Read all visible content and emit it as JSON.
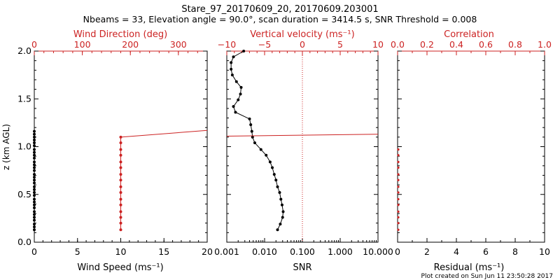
{
  "header": {
    "title": "Stare_97_20170609_20, 20170609.203001",
    "subtitle": "Nbeams = 33, Elevation angle = 90.0°, scan duration = 3414.5 s, SNR Threshold = 0.008"
  },
  "footer": {
    "created": "Plot created on Sun Jun 11 23:50:28 2017"
  },
  "colors": {
    "primary": "#000000",
    "accent": "#cc2222"
  },
  "chart_data": [
    {
      "type": "scatter",
      "panel": "wind",
      "ylabel": "z (km AGL)",
      "ylim": [
        0,
        2
      ],
      "yticks": [
        "0.0",
        "0.5",
        "1.0",
        "1.5",
        "2.0"
      ],
      "xlabel": "Wind Speed (ms⁻¹)",
      "xlim": [
        0,
        20
      ],
      "xticks": [
        "0",
        "5",
        "10",
        "15",
        "20"
      ],
      "xlabel_top": "Wind Direction (deg)",
      "xlim_top": [
        0,
        360
      ],
      "xticks_top": [
        "0",
        "100",
        "200",
        "300"
      ],
      "xticks_top_values": [
        0,
        100,
        200,
        300
      ],
      "series": [
        {
          "color": "#000000",
          "axis": "bottom",
          "z": [
            0.13,
            0.16,
            0.19,
            0.23,
            0.26,
            0.29,
            0.32,
            0.36,
            0.39,
            0.42,
            0.45,
            0.49,
            0.52,
            0.55,
            0.58,
            0.62,
            0.65,
            0.68,
            0.71,
            0.75,
            0.78,
            0.81,
            0.84,
            0.88,
            0.91,
            0.94,
            0.97,
            1.01,
            1.04,
            1.07,
            1.1,
            1.13,
            1.16
          ],
          "values": [
            0,
            0,
            0,
            0,
            0,
            0,
            0,
            0,
            0,
            0,
            0,
            0,
            0,
            0,
            0,
            0,
            0,
            0,
            0,
            0,
            0,
            0,
            0,
            0,
            0,
            0,
            0,
            0,
            0,
            0,
            0,
            0,
            0
          ]
        },
        {
          "color": "#cc2222",
          "axis": "top",
          "z": [
            0.13,
            0.2,
            0.26,
            0.32,
            0.39,
            0.45,
            0.52,
            0.58,
            0.65,
            0.71,
            0.78,
            0.84,
            0.91,
            0.97,
            1.04,
            1.1
          ],
          "values": [
            180,
            180,
            180,
            180,
            180,
            180,
            180,
            180,
            180,
            180,
            180,
            180,
            180,
            180,
            180,
            180
          ],
          "extension": {
            "z": [
              1.1,
              1.17
            ],
            "values": [
              180,
              360
            ]
          }
        }
      ]
    },
    {
      "type": "line",
      "panel": "velocity",
      "xlabel": "SNR",
      "xscale": "log",
      "xlim": [
        0.001,
        10
      ],
      "xticks": [
        "0.001",
        "0.010",
        "0.100",
        "1.000",
        "10.000"
      ],
      "xticks_values": [
        0.001,
        0.01,
        0.1,
        1,
        10
      ],
      "xlabel_top": "Vertical velocity (ms⁻¹)",
      "xlim_top": [
        -10,
        10
      ],
      "xticks_top": [
        "−10",
        "−5",
        "0",
        "5",
        "10"
      ],
      "xticks_top_values": [
        -10,
        -5,
        0,
        5,
        10
      ],
      "ylim": [
        0,
        2
      ],
      "zero_line": 0,
      "snr": {
        "z": [
          0.13,
          0.19,
          0.26,
          0.32,
          0.39,
          0.45,
          0.52,
          0.58,
          0.65,
          0.71,
          0.78,
          0.84,
          0.91,
          0.97,
          1.04,
          1.1,
          1.16,
          1.23,
          1.29,
          1.36,
          1.42,
          1.49,
          1.55,
          1.62,
          1.68,
          1.75,
          1.81,
          1.88,
          1.94,
          2.0
        ],
        "values": [
          0.022,
          0.026,
          0.03,
          0.031,
          0.029,
          0.027,
          0.025,
          0.022,
          0.02,
          0.018,
          0.016,
          0.014,
          0.011,
          0.008,
          0.0055,
          0.0048,
          0.0046,
          0.0043,
          0.004,
          0.0017,
          0.0015,
          0.002,
          0.0023,
          0.0024,
          0.0018,
          0.0014,
          0.0013,
          0.0013,
          0.0015,
          0.0028
        ]
      },
      "cloud_line": {
        "z": [
          1.11,
          1.13
        ],
        "snr": [
          0.001,
          10
        ]
      }
    },
    {
      "type": "scatter",
      "panel": "correlation",
      "xlabel": "Residual (ms⁻¹)",
      "xlim": [
        0,
        10
      ],
      "xticks": [
        "0",
        "2",
        "4",
        "6",
        "8",
        "10"
      ],
      "xlabel_top": "Correlation",
      "xlim_top": [
        0,
        1
      ],
      "xticks_top": [
        "0.0",
        "0.2",
        "0.4",
        "0.6",
        "0.8",
        "1.0"
      ],
      "ylim": [
        0,
        2
      ],
      "series": [
        {
          "color": "#cc2222",
          "axis": "top",
          "z": [
            0.13,
            0.2,
            0.26,
            0.32,
            0.39,
            0.45,
            0.52,
            0.58,
            0.65,
            0.71,
            0.78,
            0.84,
            0.91,
            0.97
          ],
          "values": [
            0,
            0,
            0,
            0,
            0,
            0,
            0,
            0,
            0,
            0,
            0,
            0,
            0,
            0
          ]
        }
      ]
    }
  ]
}
